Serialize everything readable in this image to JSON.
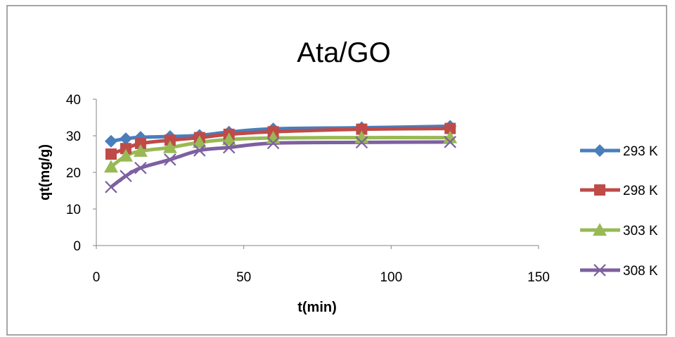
{
  "chart_data": {
    "type": "line",
    "title": "Ata/GO",
    "xlabel": "t(min)",
    "ylabel": "qt(mg/g)",
    "xlim": [
      0,
      150
    ],
    "ylim": [
      0,
      40
    ],
    "xticks": [
      "0",
      "50",
      "100",
      "150"
    ],
    "yticks": [
      "0",
      "10",
      "20",
      "30",
      "40"
    ],
    "grid": false,
    "legend_position": "right",
    "x": [
      5,
      10,
      15,
      25,
      35,
      45,
      60,
      90,
      120
    ],
    "series": [
      {
        "name": "293 K",
        "color": "#4A7EBB",
        "marker": "diamond",
        "values": [
          28.5,
          29.2,
          29.6,
          29.8,
          30.1,
          31.0,
          31.9,
          32.2,
          32.6
        ]
      },
      {
        "name": "298 K",
        "color": "#BE4B48",
        "marker": "square",
        "values": [
          25.0,
          26.5,
          27.9,
          28.8,
          29.5,
          30.4,
          31.1,
          31.8,
          32.0
        ]
      },
      {
        "name": "303 K",
        "color": "#98B954",
        "marker": "triangle",
        "values": [
          21.5,
          24.5,
          25.8,
          26.8,
          28.2,
          29.0,
          29.4,
          29.5,
          29.5
        ]
      },
      {
        "name": "308 K",
        "color": "#7D60A0",
        "marker": "x",
        "values": [
          16.0,
          19.0,
          21.2,
          23.5,
          26.0,
          26.8,
          28.0,
          28.2,
          28.3
        ]
      }
    ]
  }
}
